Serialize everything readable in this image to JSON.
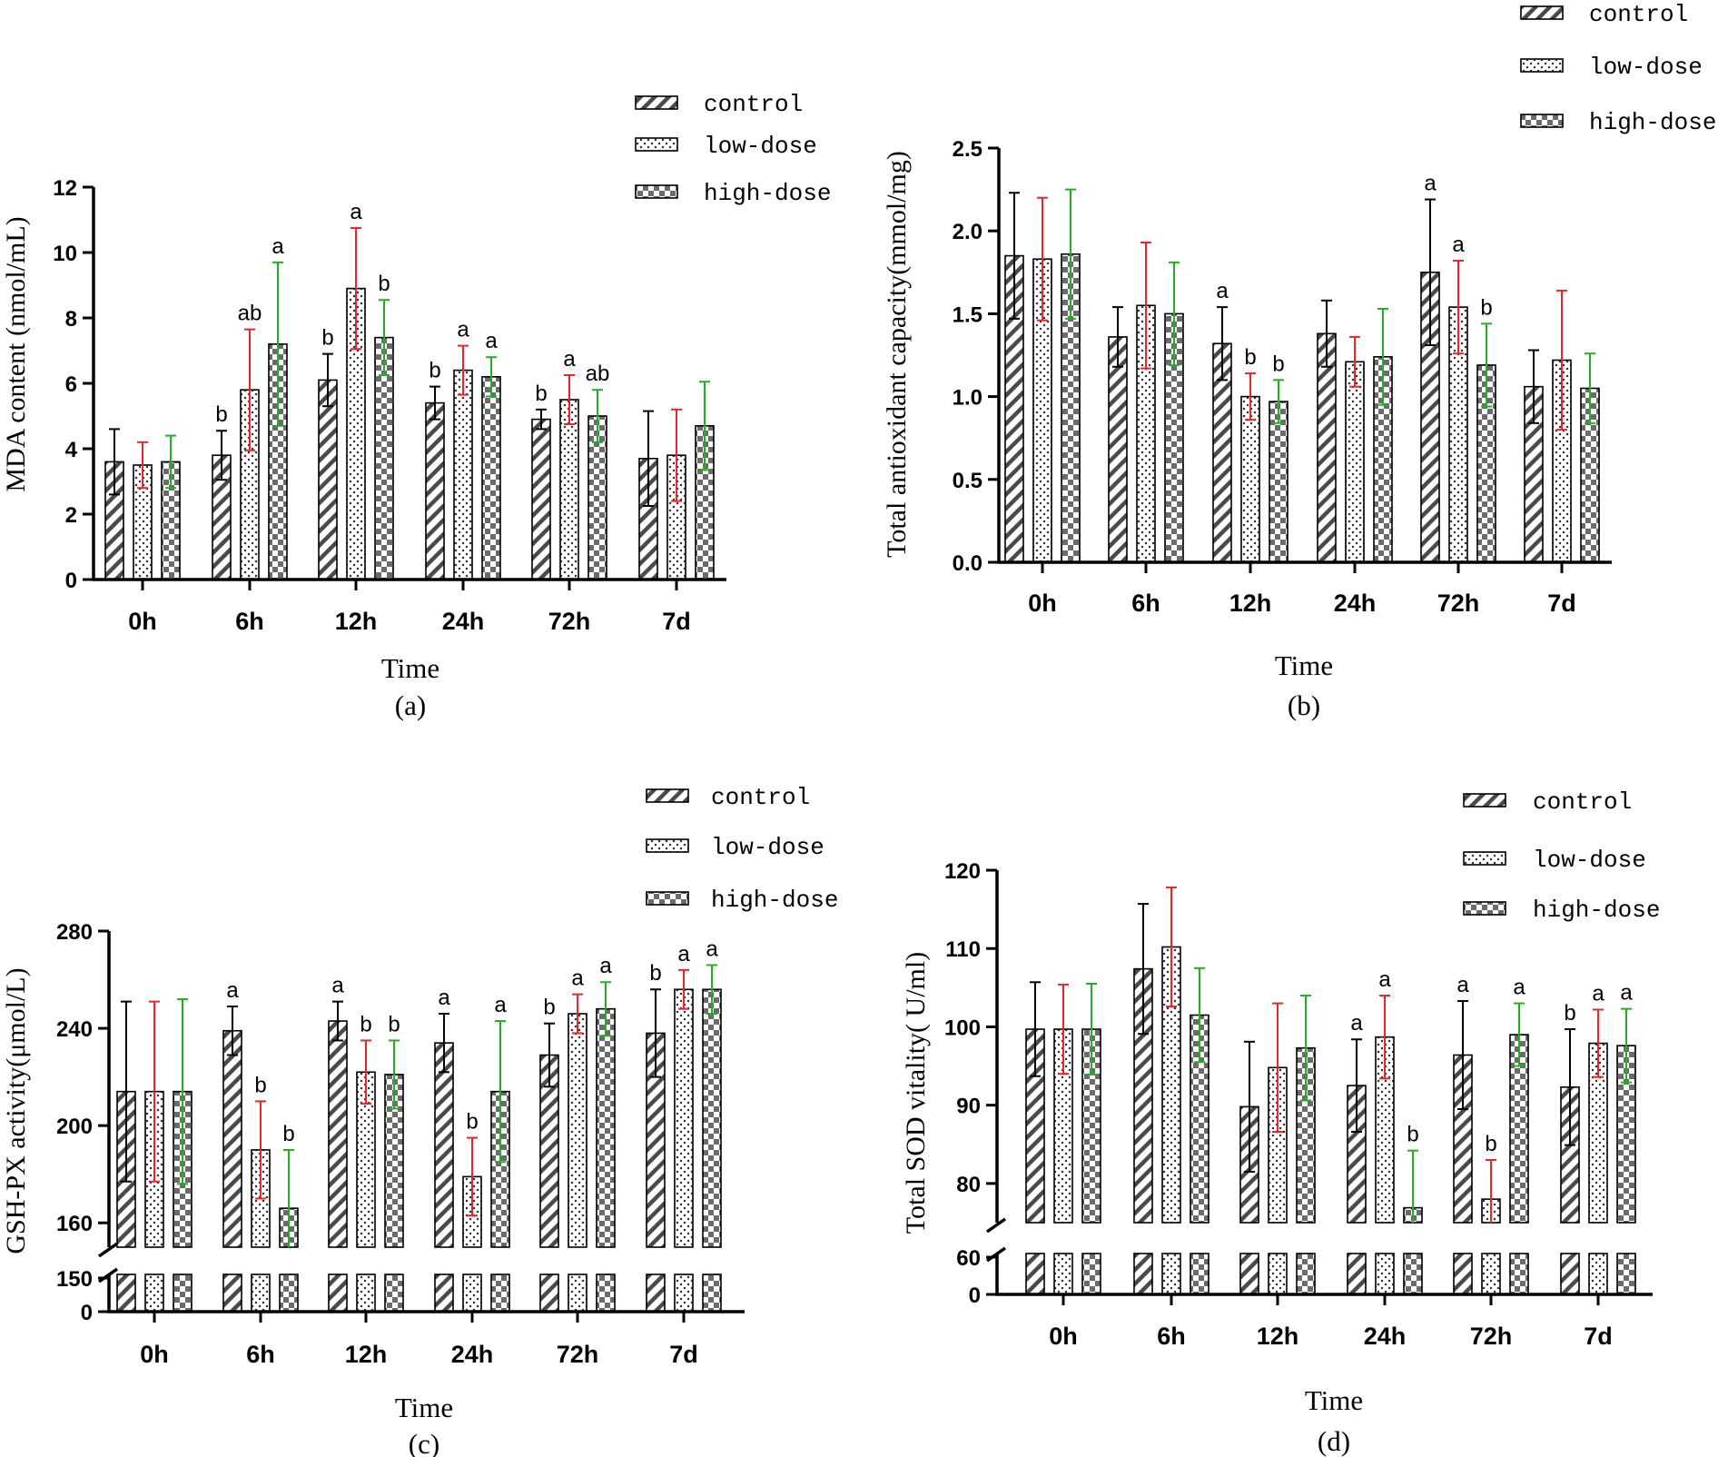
{
  "colors": {
    "axis": "#000000",
    "bar_fill": "#ffffff",
    "bar_stroke": "#000000",
    "control_error": "#000000",
    "low_error": "#e8262a",
    "high_error": "#22b022",
    "control_pattern": "#4a4a4a",
    "low_pattern": "#333333",
    "high_pattern": "#6b6b6b"
  },
  "legend": {
    "control": "control",
    "low": "low-dose",
    "high": "high-dose"
  },
  "chart_data": [
    {
      "panel": "(a)",
      "type": "bar",
      "title": "",
      "xlabel": "Time",
      "ylabel": "MDA content (nmol/mL)",
      "ylim": [
        0,
        12
      ],
      "yticks": [
        0,
        2,
        4,
        6,
        8,
        10,
        12
      ],
      "yticks_lower": [],
      "categories": [
        "0h",
        "6h",
        "12h",
        "24h",
        "72h",
        "7d"
      ],
      "series": [
        {
          "name": "control",
          "values": [
            3.6,
            3.8,
            6.1,
            5.4,
            4.9,
            3.7
          ],
          "errors": [
            1.0,
            0.75,
            0.8,
            0.5,
            0.3,
            1.45
          ],
          "labels": [
            "",
            "b",
            "b",
            "b",
            "b",
            ""
          ]
        },
        {
          "name": "low-dose",
          "values": [
            3.5,
            5.8,
            8.9,
            6.4,
            5.5,
            3.8
          ],
          "errors": [
            0.7,
            1.85,
            1.85,
            0.75,
            0.75,
            1.4
          ],
          "labels": [
            "",
            "ab",
            "a",
            "a",
            "a",
            ""
          ]
        },
        {
          "name": "high-dose",
          "values": [
            3.6,
            7.2,
            7.4,
            6.2,
            5.0,
            4.7
          ],
          "errors": [
            0.8,
            2.5,
            1.15,
            0.6,
            0.8,
            1.35
          ],
          "labels": [
            "",
            "a",
            "b",
            "a",
            "ab",
            ""
          ]
        }
      ]
    },
    {
      "panel": "(b)",
      "type": "bar",
      "title": "",
      "xlabel": "Time",
      "ylabel": "Total antioxidant capacity(mmol/mg)",
      "ylim": [
        0,
        2.5
      ],
      "yticks": [
        "0.0",
        "0.5",
        "1.0",
        "1.5",
        "2.0",
        "2.5"
      ],
      "yticks_lower": [],
      "categories": [
        "0h",
        "6h",
        "12h",
        "24h",
        "72h",
        "7d"
      ],
      "series": [
        {
          "name": "control",
          "values": [
            1.85,
            1.36,
            1.32,
            1.38,
            1.75,
            1.06
          ],
          "errors": [
            0.38,
            0.18,
            0.22,
            0.2,
            0.44,
            0.22
          ],
          "labels": [
            "",
            "",
            "a",
            "",
            "a",
            ""
          ]
        },
        {
          "name": "low-dose",
          "values": [
            1.83,
            1.55,
            1.0,
            1.21,
            1.54,
            1.22
          ],
          "errors": [
            0.37,
            0.38,
            0.14,
            0.15,
            0.28,
            0.42
          ],
          "labels": [
            "",
            "",
            "b",
            "",
            "a",
            ""
          ]
        },
        {
          "name": "high-dose",
          "values": [
            1.86,
            1.5,
            0.97,
            1.24,
            1.19,
            1.05
          ],
          "errors": [
            0.39,
            0.31,
            0.13,
            0.29,
            0.25,
            0.21
          ],
          "labels": [
            "",
            "",
            "b",
            "",
            "b",
            ""
          ]
        }
      ]
    },
    {
      "panel": "(c)",
      "type": "bar",
      "title": "",
      "xlabel": "Time",
      "ylabel": "GSH-PX activity(μmol/L)",
      "ylim": [
        150,
        280
      ],
      "yticks": [
        160,
        200,
        240,
        280
      ],
      "yticks_lower": [
        0,
        150
      ],
      "categories": [
        "0h",
        "6h",
        "12h",
        "24h",
        "72h",
        "7d"
      ],
      "series": [
        {
          "name": "control",
          "values": [
            214,
            239,
            243,
            234,
            229,
            238
          ],
          "errors": [
            37,
            10,
            8,
            12,
            13,
            18
          ],
          "labels": [
            "",
            "a",
            "a",
            "a",
            "b",
            "b"
          ]
        },
        {
          "name": "low-dose",
          "values": [
            214,
            190,
            222,
            179,
            246,
            256
          ],
          "errors": [
            37,
            20,
            13,
            16,
            8,
            8
          ],
          "labels": [
            "",
            "b",
            "b",
            "b",
            "a",
            "a"
          ]
        },
        {
          "name": "high-dose",
          "values": [
            214,
            166,
            221,
            214,
            248,
            256
          ],
          "errors": [
            38,
            24,
            14,
            29,
            11,
            10
          ],
          "labels": [
            "",
            "b",
            "b",
            "a",
            "a",
            "a"
          ]
        }
      ]
    },
    {
      "panel": "(d)",
      "type": "bar",
      "title": "",
      "xlabel": "Time",
      "ylabel": "Total SOD vitality( U/ml)",
      "ylim": [
        75,
        120
      ],
      "yticks": [
        80,
        90,
        100,
        110,
        120
      ],
      "yticks_lower": [
        0,
        60
      ],
      "categories": [
        "0h",
        "6h",
        "12h",
        "24h",
        "72h",
        "7d"
      ],
      "series": [
        {
          "name": "control",
          "values": [
            99.7,
            107.4,
            89.8,
            92.5,
            96.4,
            92.3
          ],
          "errors": [
            6.0,
            8.3,
            8.3,
            5.9,
            6.9,
            7.4
          ],
          "labels": [
            "",
            "",
            "",
            "a",
            "a",
            "b"
          ]
        },
        {
          "name": "low-dose",
          "values": [
            99.7,
            110.2,
            94.8,
            98.7,
            78.0,
            97.9
          ],
          "errors": [
            5.7,
            7.6,
            8.2,
            5.3,
            5.0,
            4.3
          ],
          "labels": [
            "",
            "",
            "",
            "a",
            "b",
            "a"
          ]
        },
        {
          "name": "high-dose",
          "values": [
            99.7,
            101.5,
            97.3,
            76.9,
            99.0,
            97.6
          ],
          "errors": [
            5.8,
            6.0,
            6.7,
            7.3,
            4.0,
            4.7
          ],
          "labels": [
            "",
            "",
            "",
            "b",
            "a",
            "a"
          ]
        }
      ]
    }
  ]
}
